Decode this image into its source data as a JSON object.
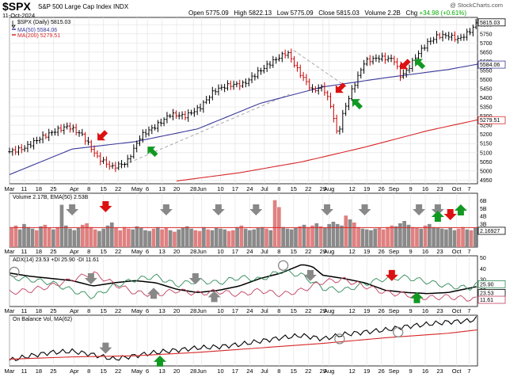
{
  "header": {
    "symbol": "$SPX",
    "name": "S&P 500 Large Cap Index",
    "exchange": "INDX",
    "date": "11-Oct-2024",
    "watermark": "@ StockCharts.com",
    "open_label": "Open",
    "open": "5775.09",
    "high_label": "High",
    "high": "5822.13",
    "low_label": "Low",
    "low": "5775.09",
    "close_label": "Close",
    "close": "5815.03",
    "volume_label": "Volume",
    "volume": "2.2B",
    "chg_label": "Chg",
    "change": "+34.98 (+0.61%)"
  },
  "legend": {
    "price": "$SPX (Daily) 5815.03",
    "ma50": "MA(50) 5584.06",
    "ma200": "MA(200) 5279.51",
    "volume": "Volume 2.17B, EMA(50) 2.53B",
    "adx": "ADX(14) 23.53 +DI 25.90 -DI 11.61",
    "obv": "On Balance Vol, MA(62)"
  },
  "colors": {
    "price_bar": "#000000",
    "price_bar_down": "#cc0000",
    "ma50": "#3a3a9a",
    "ma200": "#d62728",
    "trendline": "#aaaaaa",
    "vol_up": "#8a8a8a",
    "vol_down": "#e08080",
    "plus_di": "#2e8b57",
    "minus_di": "#c04060",
    "adx": "#000000",
    "obv": "#000000",
    "obv_ma": "#d62728",
    "grid": "#e4e4e4",
    "up_arrow": "#119922",
    "down_arrow": "#dd1111",
    "gray_arrow": "#888888"
  },
  "chart_data": [
    {
      "type": "line",
      "panel": "price",
      "title": "$SPX (Daily) 5815.03",
      "y_ticks": [
        4950,
        5000,
        5050,
        5100,
        5150,
        5200,
        5250,
        5300,
        5350,
        5400,
        5450,
        5500,
        5550,
        5600,
        5650,
        5700,
        5750,
        5800
      ],
      "ylim": [
        4930,
        5840
      ],
      "x_ticks": [
        "Mar",
        "11",
        "18",
        "25",
        "Apr",
        "8",
        "15",
        "22",
        "May",
        "6",
        "13",
        "20",
        "28",
        "Jun",
        "10",
        "17",
        "24",
        "Jul",
        "8",
        "15",
        "22",
        "29",
        "Aug",
        "12",
        "19",
        "26",
        "Sep",
        "9",
        "16",
        "23",
        "Oct",
        "7"
      ],
      "x_tick_days": [
        0,
        7,
        14,
        21,
        31,
        38,
        45,
        52,
        61,
        66,
        73,
        80,
        88,
        92,
        101,
        108,
        115,
        122,
        129,
        136,
        143,
        150,
        153,
        164,
        171,
        178,
        184,
        192,
        199,
        206,
        214,
        220
      ],
      "x_last_day": 224,
      "series": [
        {
          "name": "$SPX (Daily)",
          "x": [
            0,
            7,
            14,
            21,
            28,
            35,
            42,
            49,
            56,
            63,
            70,
            77,
            84,
            91,
            98,
            105,
            112,
            119,
            126,
            133,
            138,
            145,
            150,
            154,
            157,
            160,
            164,
            170,
            177,
            184,
            187,
            190,
            195,
            200,
            205,
            210,
            215,
            220,
            224
          ],
          "values": [
            5105,
            5125,
            5175,
            5215,
            5245,
            5195,
            5075,
            5020,
            5045,
            5195,
            5245,
            5310,
            5300,
            5345,
            5440,
            5470,
            5475,
            5540,
            5600,
            5650,
            5550,
            5440,
            5460,
            5350,
            5190,
            5330,
            5445,
            5600,
            5620,
            5610,
            5520,
            5545,
            5635,
            5700,
            5740,
            5740,
            5720,
            5760,
            5815
          ]
        },
        {
          "name": "MA(50)",
          "x": [
            0,
            30,
            60,
            90,
            120,
            150,
            180,
            210,
            224
          ],
          "values": [
            4980,
            5120,
            5160,
            5230,
            5370,
            5460,
            5510,
            5555,
            5584.06
          ]
        },
        {
          "name": "MA(200)",
          "x": [
            80,
            110,
            140,
            170,
            200,
            224
          ],
          "values": [
            4945,
            4990,
            5050,
            5130,
            5220,
            5279.51
          ]
        }
      ],
      "annotations": [
        "5815.03",
        "5584.06",
        "5279.51"
      ]
    },
    {
      "type": "bar",
      "panel": "volume",
      "title": "Volume 2.17B, EMA(50) 2.53B",
      "y_ticks": [
        "2B",
        "3B",
        "4B",
        "5B",
        "6B"
      ],
      "ylim": [
        0,
        7
      ],
      "annotations": [
        "2.16927"
      ],
      "series": [
        {
          "name": "Volume",
          "values": [
            2.5,
            2.8,
            2.3,
            3.0,
            2.6,
            2.4,
            2.2,
            2.7,
            2.9,
            2.5,
            2.3,
            2.6,
            5.5,
            2.8,
            2.4,
            2.2,
            2.5,
            2.9,
            3.1,
            2.6,
            2.3,
            2.1,
            2.4,
            2.8,
            3.2,
            2.5,
            2.2,
            2.6,
            2.4,
            2.3,
            2.7,
            2.5,
            2.2,
            2.1,
            2.4,
            2.6,
            2.3,
            2.5,
            2.2,
            2.0,
            2.3,
            2.5,
            2.7,
            2.4,
            2.2,
            2.1,
            2.6,
            2.3,
            2.2,
            2.5,
            2.4,
            2.3,
            2.1,
            2.2,
            2.6,
            2.8,
            2.4,
            2.2,
            2.3,
            2.5,
            2.6,
            2.4,
            2.2,
            6.1,
            5.2,
            2.6,
            2.4,
            2.3,
            2.5,
            2.7,
            2.9,
            2.6,
            2.8,
            3.1,
            2.7,
            2.5,
            3.0,
            3.3,
            3.0,
            2.8,
            4.1,
            3.6,
            3.2,
            2.6,
            2.4,
            2.3,
            2.2,
            2.4,
            2.5,
            2.3,
            2.6,
            2.8,
            2.7,
            3.1,
            3.4,
            2.9,
            2.6,
            2.5,
            2.4,
            2.8,
            3.0,
            2.6,
            2.5,
            2.4,
            2.3,
            2.5,
            2.2,
            2.4,
            2.6,
            2.3,
            2.2,
            2.5
          ]
        },
        {
          "name": "EMA(50)",
          "values": [
            2.53
          ]
        }
      ]
    },
    {
      "type": "line",
      "panel": "adx",
      "title": "ADX(14) 23.53 +DI 25.90 -DI 11.61",
      "y_ticks": [
        10,
        20,
        30,
        40,
        50
      ],
      "ylim": [
        5,
        52
      ],
      "annotations": [
        "25.90",
        "23.53",
        "11.61"
      ],
      "series": [
        {
          "name": "ADX(14)",
          "x": [
            0,
            10,
            20,
            30,
            40,
            50,
            60,
            70,
            80,
            90,
            100,
            110,
            120,
            130,
            140,
            145,
            150,
            160,
            170,
            180,
            190,
            200,
            210,
            220,
            224
          ],
          "values": [
            36,
            33,
            31,
            29,
            24,
            27,
            29,
            27,
            21,
            18,
            20,
            24,
            31,
            36,
            44,
            42,
            34,
            31,
            27,
            20,
            18,
            17,
            18,
            22,
            23.53
          ]
        },
        {
          "name": "+DI",
          "x": [
            0,
            10,
            20,
            30,
            40,
            50,
            60,
            70,
            80,
            90,
            100,
            110,
            120,
            130,
            140,
            150,
            160,
            170,
            180,
            190,
            200,
            210,
            220,
            224
          ],
          "values": [
            32,
            30,
            27,
            20,
            14,
            24,
            30,
            33,
            25,
            29,
            27,
            32,
            30,
            38,
            34,
            22,
            20,
            26,
            31,
            32,
            28,
            24,
            22,
            25.9
          ]
        },
        {
          "name": "-DI",
          "x": [
            0,
            10,
            20,
            30,
            40,
            50,
            60,
            70,
            80,
            90,
            100,
            110,
            120,
            130,
            140,
            150,
            160,
            170,
            180,
            190,
            200,
            210,
            220,
            224
          ],
          "values": [
            18,
            20,
            24,
            30,
            36,
            26,
            18,
            16,
            20,
            17,
            19,
            16,
            20,
            16,
            20,
            28,
            30,
            24,
            18,
            16,
            13,
            14,
            12,
            11.61
          ]
        }
      ]
    },
    {
      "type": "line",
      "panel": "obv",
      "title": "On Balance Vol, MA(62)",
      "series": [
        {
          "name": "On Balance Vol",
          "x": [
            0,
            10,
            20,
            30,
            40,
            50,
            60,
            70,
            80,
            90,
            100,
            110,
            120,
            130,
            140,
            150,
            160,
            170,
            180,
            190,
            200,
            210,
            220,
            224
          ],
          "values": [
            30,
            34,
            37,
            38,
            35,
            31,
            34,
            37,
            39,
            41,
            42,
            44,
            47,
            50,
            52,
            49,
            53,
            55,
            57,
            60,
            62,
            64,
            65,
            67
          ]
        },
        {
          "name": "MA(62)",
          "x": [
            0,
            30,
            60,
            90,
            120,
            150,
            180,
            210,
            224
          ],
          "values": [
            31,
            33,
            34,
            37,
            41,
            45,
            50,
            54,
            57
          ]
        }
      ]
    }
  ]
}
